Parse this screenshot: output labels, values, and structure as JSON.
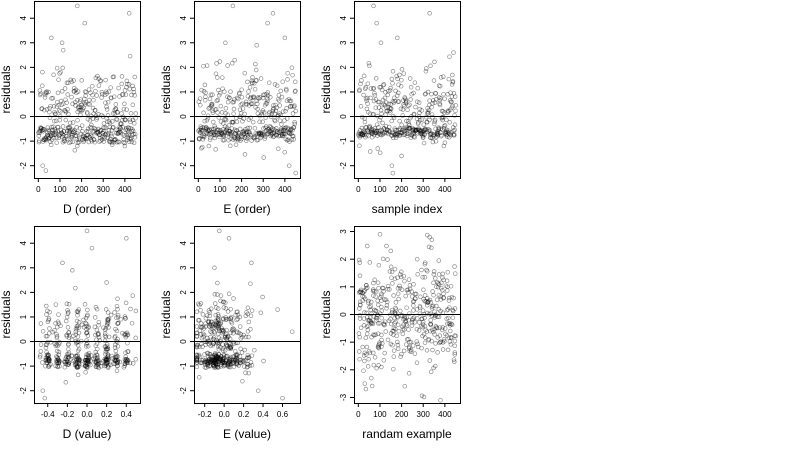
{
  "figure": {
    "ylabel": "residuals"
  },
  "chart_data": [
    {
      "type": "scatter",
      "xlabel": "D (order)",
      "ylabel": "residuals",
      "xlim": [
        -20,
        470
      ],
      "ylim": [
        -2.5,
        4.7
      ],
      "xticks": [
        0,
        100,
        200,
        300,
        400
      ],
      "yticks": [
        -2,
        -1,
        0,
        1,
        2,
        3,
        4
      ],
      "hline": 0,
      "n_points": 450,
      "x_range": [
        1,
        450
      ],
      "y_features": [
        [
          60,
          3.2
        ],
        [
          110,
          3.0
        ],
        [
          115,
          2.7
        ],
        [
          180,
          4.5
        ],
        [
          215,
          3.8
        ],
        [
          420,
          4.2
        ],
        [
          20,
          -2.0
        ],
        [
          35,
          -2.2
        ],
        [
          180,
          -1.2
        ],
        [
          400,
          -1.2
        ]
      ],
      "gen": {
        "seed": 11,
        "mode": "order",
        "bands": [
          -0.6,
          -0.9
        ]
      }
    },
    {
      "type": "scatter",
      "xlabel": "E (order)",
      "ylabel": "residuals",
      "xlim": [
        -20,
        470
      ],
      "ylim": [
        -2.5,
        4.7
      ],
      "xticks": [
        0,
        100,
        200,
        300,
        400
      ],
      "yticks": [
        -2,
        -1,
        0,
        1,
        2,
        3,
        4
      ],
      "hline": 0,
      "n_points": 450,
      "x_range": [
        1,
        450
      ],
      "y_features": [
        [
          125,
          3.0
        ],
        [
          160,
          4.5
        ],
        [
          320,
          3.8
        ],
        [
          345,
          4.2
        ],
        [
          270,
          2.9
        ],
        [
          450,
          -2.3
        ],
        [
          420,
          -2.0
        ],
        [
          400,
          3.2
        ]
      ],
      "gen": {
        "seed": 23,
        "mode": "order",
        "bands": [
          -0.6,
          -0.8
        ]
      }
    },
    {
      "type": "scatter",
      "xlabel": "sample index",
      "ylabel": "residuals",
      "xlim": [
        -20,
        470
      ],
      "ylim": [
        -2.5,
        4.7
      ],
      "xticks": [
        0,
        100,
        200,
        300,
        400
      ],
      "yticks": [
        -2,
        -1,
        0,
        1,
        2,
        3,
        4
      ],
      "hline": 0,
      "n_points": 450,
      "x_range": [
        1,
        450
      ],
      "y_features": [
        [
          70,
          4.5
        ],
        [
          85,
          3.8
        ],
        [
          105,
          3.0
        ],
        [
          180,
          3.2
        ],
        [
          330,
          4.2
        ],
        [
          160,
          -2.3
        ],
        [
          155,
          -2.0
        ],
        [
          440,
          2.6
        ],
        [
          200,
          -1.6
        ]
      ],
      "gen": {
        "seed": 37,
        "mode": "order",
        "bands": [
          -0.7,
          -0.6
        ]
      }
    },
    {
      "type": "scatter",
      "xlabel": "D (value)",
      "ylabel": "residuals",
      "xlim": [
        -0.54,
        0.54
      ],
      "ylim": [
        -2.5,
        4.7
      ],
      "xticks": [
        -0.4,
        -0.2,
        0.0,
        0.2,
        0.4
      ],
      "xtick_labels": [
        "-0.4",
        "-0.2",
        "0.0",
        "0.2",
        "0.4"
      ],
      "yticks": [
        -2,
        -1,
        0,
        1,
        2,
        3,
        4
      ],
      "hline": 0,
      "n_points": 450,
      "x_range": [
        -0.5,
        0.5
      ],
      "y_features": [
        [
          -0.25,
          3.2
        ],
        [
          -0.15,
          2.9
        ],
        [
          0.0,
          4.5
        ],
        [
          0.05,
          3.8
        ],
        [
          0.4,
          4.2
        ],
        [
          -0.45,
          -2.0
        ],
        [
          -0.43,
          -2.3
        ],
        [
          0.2,
          2.4
        ]
      ],
      "gen": {
        "seed": 51,
        "mode": "columns",
        "columns": [
          -0.4,
          -0.3,
          -0.2,
          -0.1,
          0.0,
          0.1,
          0.2,
          0.3,
          0.4
        ],
        "bands": [
          -0.7,
          -0.9
        ]
      }
    },
    {
      "type": "scatter",
      "xlabel": "E (value)",
      "ylabel": "residuals",
      "xlim": [
        -0.31,
        0.78
      ],
      "ylim": [
        -2.5,
        4.7
      ],
      "xticks": [
        -0.2,
        0.0,
        0.2,
        0.4,
        0.6
      ],
      "xtick_labels": [
        "-0.2",
        "0.0",
        "0.2",
        "0.4",
        "0.6"
      ],
      "yticks": [
        -2,
        -1,
        0,
        1,
        2,
        3,
        4
      ],
      "hline": 0,
      "n_points": 450,
      "x_range": [
        -0.28,
        0.75
      ],
      "y_features": [
        [
          -0.05,
          4.5
        ],
        [
          0.05,
          4.2
        ],
        [
          -0.1,
          3.0
        ],
        [
          0.28,
          3.2
        ],
        [
          0.7,
          0.4
        ],
        [
          0.35,
          -2.0
        ],
        [
          0.6,
          -2.3
        ],
        [
          0.55,
          1.3
        ]
      ],
      "gen": {
        "seed": 67,
        "mode": "skewed",
        "center": -0.05,
        "bands": [
          -0.7,
          -0.9
        ]
      }
    },
    {
      "type": "scatter",
      "xlabel": "randam example",
      "ylabel": "residuals",
      "xlim": [
        -20,
        470
      ],
      "ylim": [
        -3.2,
        3.2
      ],
      "xticks": [
        0,
        100,
        200,
        300,
        400
      ],
      "yticks": [
        -3,
        -2,
        -1,
        0,
        1,
        2,
        3
      ],
      "hline": 0,
      "n_points": 450,
      "x_range": [
        1,
        450
      ],
      "y_features": [
        [
          100,
          2.9
        ],
        [
          330,
          2.8
        ],
        [
          340,
          2.7
        ],
        [
          380,
          -3.1
        ],
        [
          30,
          -2.5
        ],
        [
          60,
          -2.3
        ],
        [
          150,
          2.3
        ]
      ],
      "gen": {
        "seed": 83,
        "mode": "normal"
      }
    }
  ]
}
